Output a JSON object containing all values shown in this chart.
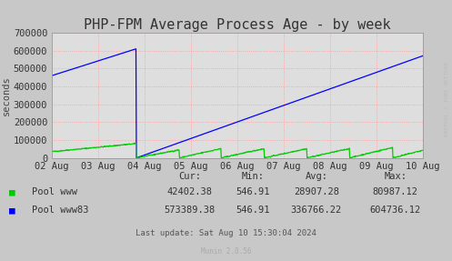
{
  "title": "PHP-FPM Average Process Age - by week",
  "ylabel": "seconds",
  "background_color": "#c8c8c8",
  "plot_bg_color": "#dedede",
  "grid_color": "#ff9999",
  "x_tick_labels": [
    "02 Aug",
    "03 Aug",
    "04 Aug",
    "05 Aug",
    "06 Aug",
    "07 Aug",
    "08 Aug",
    "09 Aug",
    "10 Aug"
  ],
  "ylim": [
    0,
    700000
  ],
  "yticks": [
    0,
    100000,
    200000,
    300000,
    400000,
    500000,
    600000,
    700000
  ],
  "ytick_labels": [
    "0",
    "100000",
    "200000",
    "300000",
    "400000",
    "500000",
    "600000",
    "700000"
  ],
  "legend_entries": [
    {
      "label": "Pool www",
      "color": "#00cc00"
    },
    {
      "label": "Pool www83",
      "color": "#0000ff"
    }
  ],
  "stats_header": [
    "Cur:",
    "Min:",
    "Avg:",
    "Max:"
  ],
  "stats": [
    {
      "name": "Pool www",
      "cur": "42402.38",
      "min": "546.91",
      "avg": "28907.28",
      "max": "80987.12"
    },
    {
      "name": "Pool www83",
      "cur": "573389.38",
      "min": "546.91",
      "avg": "336766.22",
      "max": "604736.12"
    }
  ],
  "last_update": "Last update: Sat Aug 10 15:30:04 2024",
  "munin_version": "Munin 2.0.56",
  "rrdtool_label": "RRDTOOL / TOBI OETIKER",
  "title_fontsize": 11,
  "axis_fontsize": 7.5,
  "legend_fontsize": 7.5,
  "stats_fontsize": 7.5
}
